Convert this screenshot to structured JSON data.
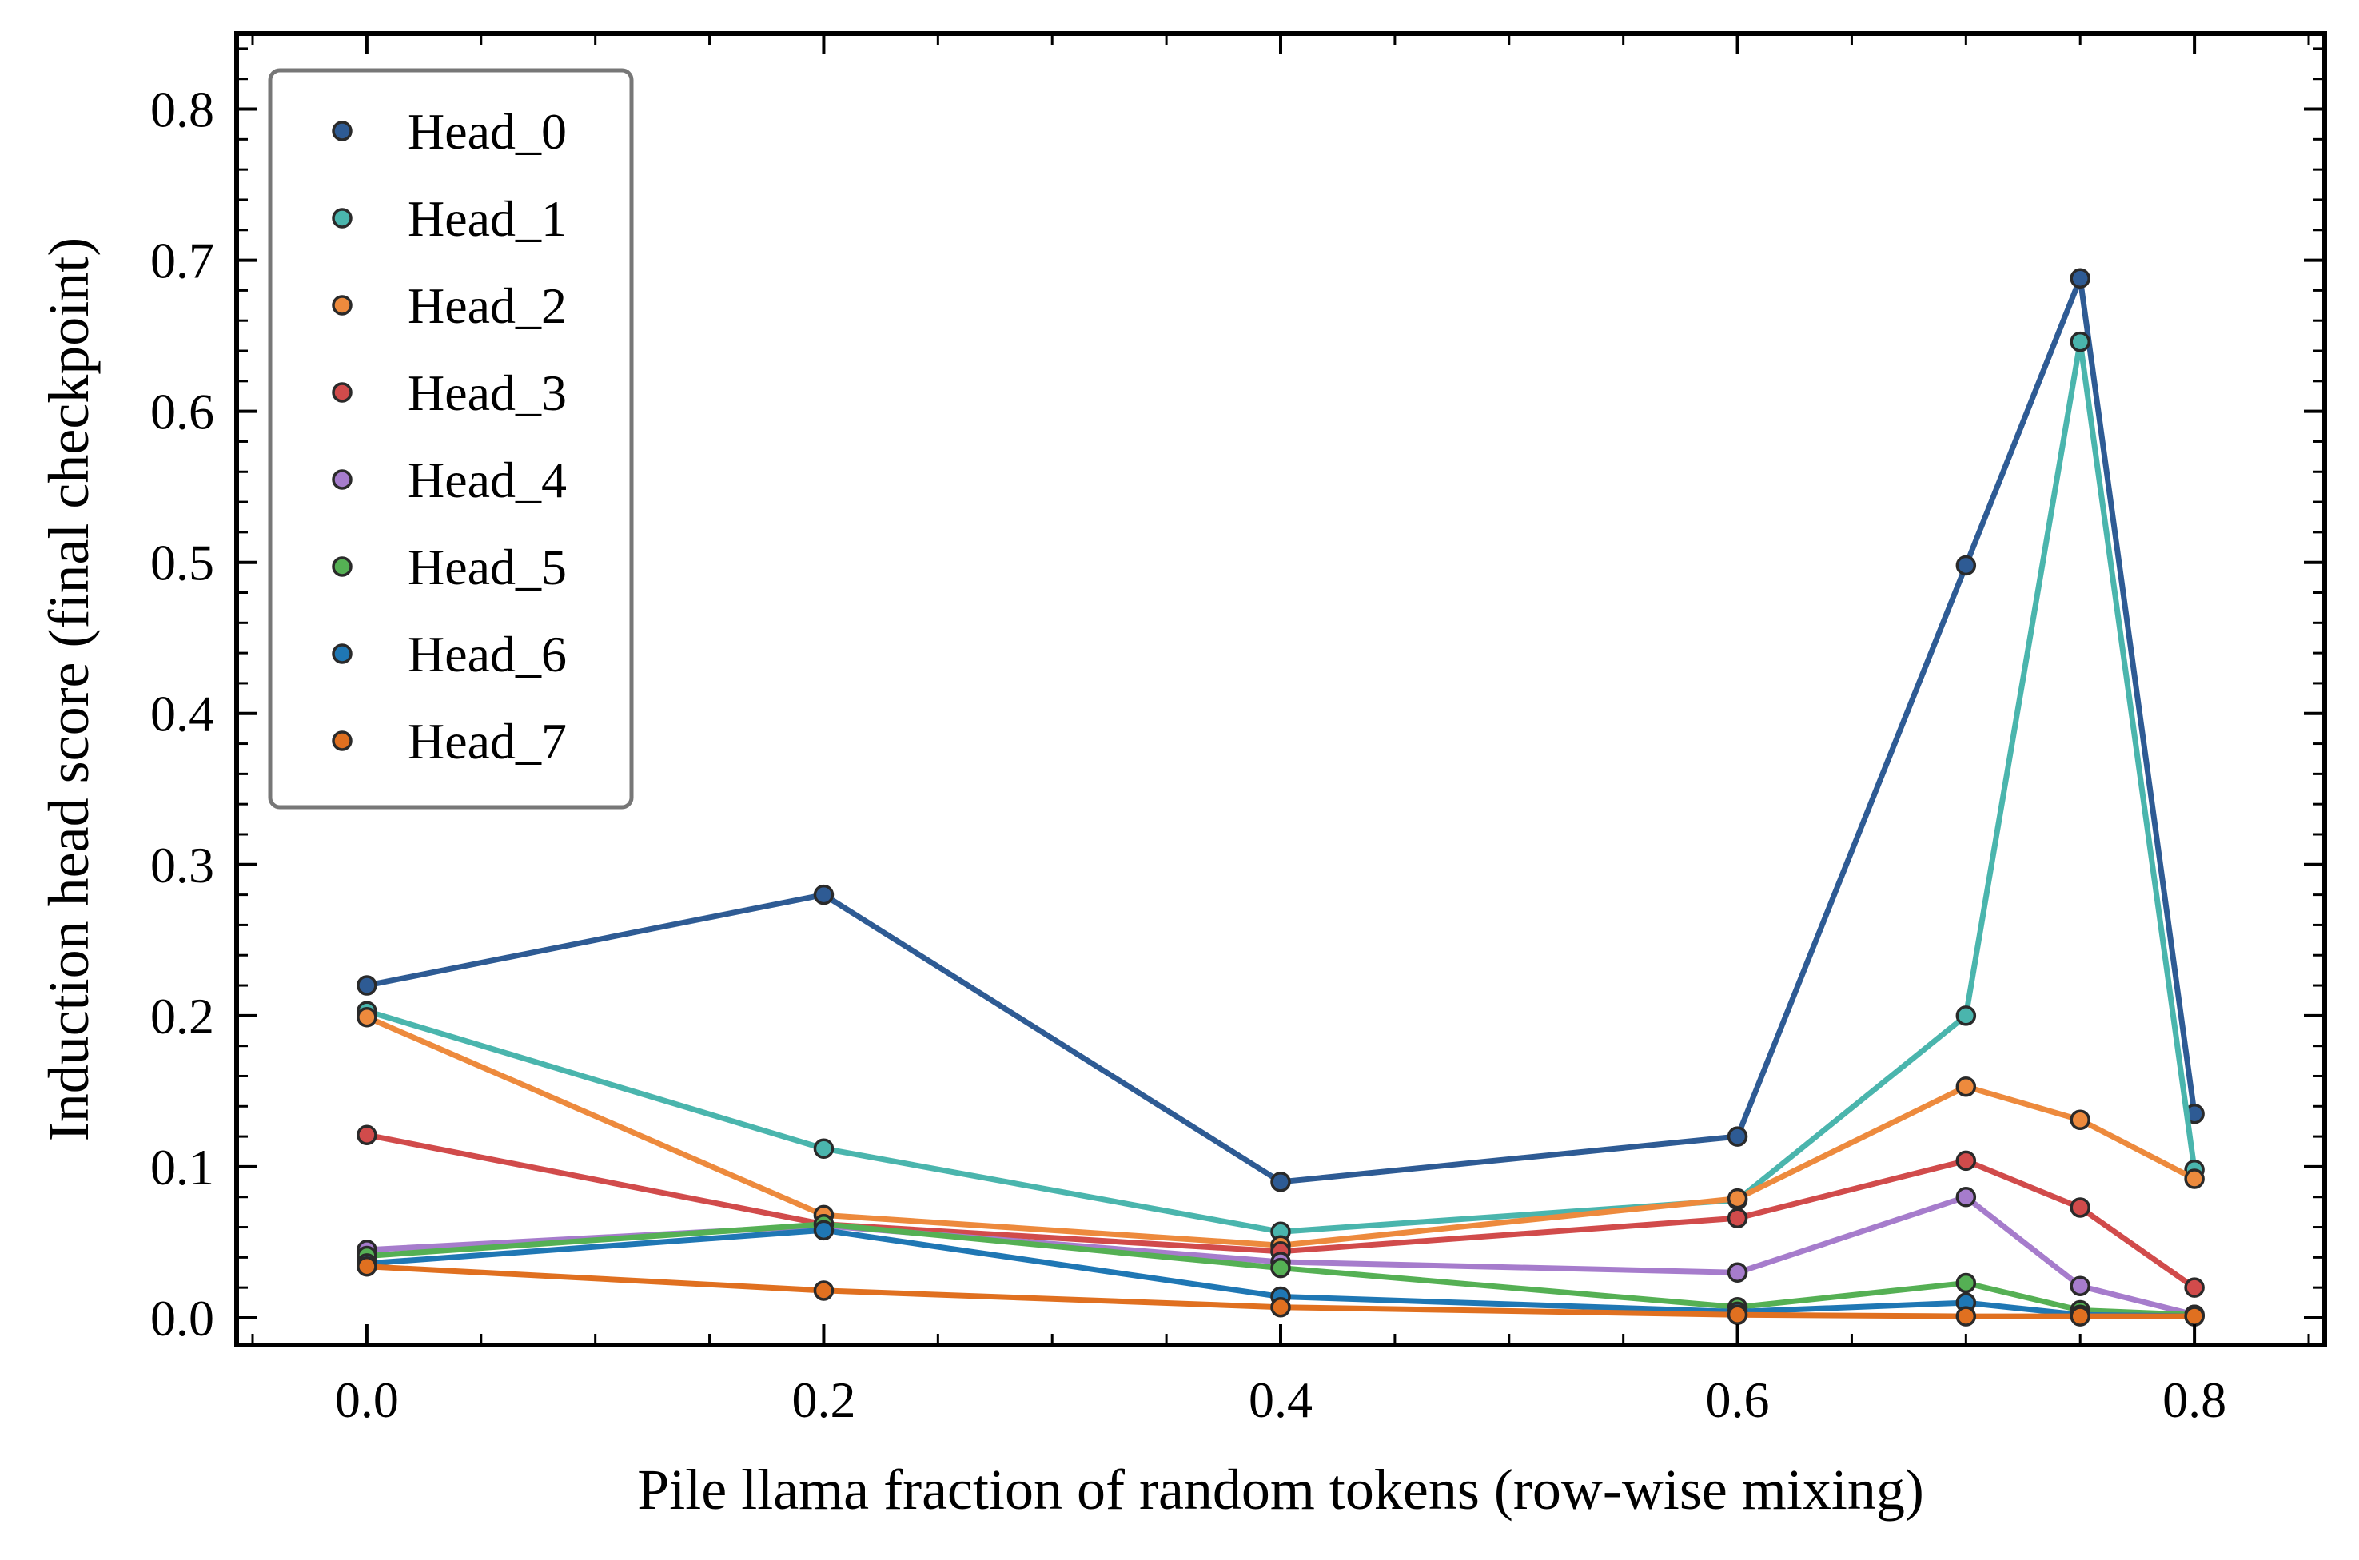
{
  "chart_data": {
    "type": "line",
    "title": "",
    "xlabel": "Pile llama fraction of random tokens (row-wise mixing)",
    "ylabel": "Induction head score (final checkpoint)",
    "xlim": [
      -0.057,
      0.857
    ],
    "ylim": [
      -0.018,
      0.85
    ],
    "x": [
      0.0,
      0.2,
      0.4,
      0.6,
      0.7,
      0.75,
      0.8
    ],
    "xticks": [
      0.0,
      0.2,
      0.4,
      0.6,
      0.8
    ],
    "xtick_labels": [
      "0.0",
      "0.2",
      "0.4",
      "0.6",
      "0.8"
    ],
    "yticks": [
      0.0,
      0.1,
      0.2,
      0.3,
      0.4,
      0.5,
      0.6,
      0.7,
      0.8
    ],
    "ytick_labels": [
      "0.0",
      "0.1",
      "0.2",
      "0.3",
      "0.4",
      "0.5",
      "0.6",
      "0.7",
      "0.8"
    ],
    "grid": false,
    "legend_position": "top-left",
    "series": [
      {
        "name": "Head_0",
        "color": "#2e5b94",
        "values": [
          0.22,
          0.28,
          0.09,
          0.12,
          0.498,
          0.688,
          0.135
        ]
      },
      {
        "name": "Head_1",
        "color": "#4ab5ad",
        "values": [
          0.203,
          0.112,
          0.057,
          0.078,
          0.2,
          0.646,
          0.098
        ]
      },
      {
        "name": "Head_2",
        "color": "#ed8a3d",
        "values": [
          0.199,
          0.068,
          0.048,
          0.079,
          0.153,
          0.131,
          0.092
        ]
      },
      {
        "name": "Head_3",
        "color": "#d14b4b",
        "values": [
          0.121,
          0.062,
          0.044,
          0.066,
          0.104,
          0.073,
          0.02
        ]
      },
      {
        "name": "Head_4",
        "color": "#a67ccc",
        "values": [
          0.045,
          0.061,
          0.037,
          0.03,
          0.08,
          0.021,
          0.002
        ]
      },
      {
        "name": "Head_5",
        "color": "#55b054",
        "values": [
          0.041,
          0.062,
          0.033,
          0.007,
          0.023,
          0.005,
          0.002
        ]
      },
      {
        "name": "Head_6",
        "color": "#1f77b4",
        "values": [
          0.036,
          0.058,
          0.014,
          0.004,
          0.01,
          0.002,
          0.001
        ]
      },
      {
        "name": "Head_7",
        "color": "#e07020",
        "values": [
          0.034,
          0.018,
          0.007,
          0.002,
          0.001,
          0.001,
          0.001
        ]
      }
    ]
  }
}
